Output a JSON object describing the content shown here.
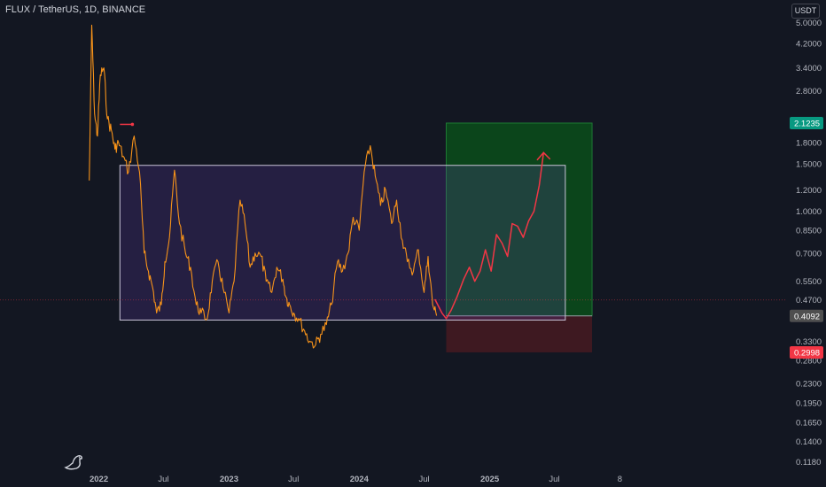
{
  "header": {
    "symbol_title": "FLUX / TetherUS, 1D, BINANCE",
    "currency_button": "USDT"
  },
  "chart_data": {
    "type": "line",
    "title": "FLUX / TetherUS, 1D, BINANCE",
    "ylabel": "",
    "xlabel": "",
    "y_scale": "log",
    "ylim": [
      0.108,
      5.3
    ],
    "y_ticks": [
      "5.0000",
      "4.2000",
      "3.4000",
      "2.8000",
      "1.8000",
      "1.5000",
      "1.2000",
      "1.0000",
      "0.8500",
      "0.7000",
      "0.5500",
      "0.4700",
      "0.3300",
      "0.2800",
      "0.2300",
      "0.1950",
      "0.1650",
      "0.1400",
      "0.1180"
    ],
    "x_ticks": [
      "2022",
      "Jul",
      "2023",
      "Jul",
      "2024",
      "Jul",
      "2025",
      "Jul",
      "8"
    ],
    "series": [
      {
        "color": "#f7931a",
        "x": [
          "2021-12-05",
          "2021-12-12",
          "2021-12-20",
          "2021-12-28",
          "2022-01-05",
          "2022-01-15",
          "2022-01-25",
          "2022-02-05",
          "2022-02-15",
          "2022-02-25",
          "2022-03-10",
          "2022-03-25",
          "2022-04-10",
          "2022-04-25",
          "2022-05-08",
          "2022-05-20",
          "2022-06-01",
          "2022-06-12",
          "2022-06-25",
          "2022-07-05",
          "2022-07-18",
          "2022-08-01",
          "2022-08-15",
          "2022-09-01",
          "2022-09-15",
          "2022-10-01",
          "2022-10-15",
          "2022-11-01",
          "2022-11-15",
          "2022-12-01",
          "2022-12-15",
          "2023-01-01",
          "2023-01-15",
          "2023-02-01",
          "2023-02-15",
          "2023-03-01",
          "2023-03-15",
          "2023-04-01",
          "2023-04-15",
          "2023-05-01",
          "2023-05-15",
          "2023-06-01",
          "2023-06-10",
          "2023-06-20",
          "2023-07-01",
          "2023-07-15",
          "2023-08-01",
          "2023-08-15",
          "2023-09-01",
          "2023-09-15",
          "2023-10-01",
          "2023-10-15",
          "2023-11-01",
          "2023-11-15",
          "2023-12-01",
          "2023-12-15",
          "2024-01-01",
          "2024-01-15",
          "2024-02-01",
          "2024-02-15",
          "2024-03-01",
          "2024-03-15",
          "2024-04-01",
          "2024-04-15",
          "2024-05-01",
          "2024-05-15",
          "2024-06-01",
          "2024-06-15",
          "2024-07-01",
          "2024-07-12",
          "2024-07-25",
          "2024-08-05"
        ],
        "y": [
          1.3,
          4.9,
          2.3,
          1.9,
          3.2,
          3.4,
          2.2,
          2.0,
          1.7,
          1.8,
          1.6,
          1.4,
          1.9,
          1.4,
          0.7,
          0.6,
          0.52,
          0.42,
          0.45,
          0.65,
          0.8,
          1.42,
          0.9,
          0.7,
          0.62,
          0.45,
          0.42,
          0.4,
          0.55,
          0.65,
          0.52,
          0.42,
          0.55,
          1.1,
          0.9,
          0.62,
          0.7,
          0.68,
          0.55,
          0.5,
          0.62,
          0.56,
          0.48,
          0.45,
          0.42,
          0.4,
          0.36,
          0.33,
          0.32,
          0.35,
          0.38,
          0.45,
          0.65,
          0.6,
          0.7,
          0.95,
          0.85,
          1.4,
          1.75,
          1.35,
          1.05,
          1.2,
          0.9,
          1.1,
          0.78,
          0.65,
          0.6,
          0.72,
          0.5,
          0.68,
          0.45,
          0.41
        ]
      }
    ],
    "projection": {
      "color": "#f23645",
      "x": [
        "2024-08-01",
        "2024-08-20",
        "2024-09-01",
        "2024-09-15",
        "2024-10-01",
        "2024-10-20",
        "2024-11-05",
        "2024-11-20",
        "2024-12-05",
        "2024-12-20",
        "2025-01-05",
        "2025-01-20",
        "2025-02-05",
        "2025-02-20",
        "2025-03-05",
        "2025-03-20",
        "2025-04-05",
        "2025-04-20",
        "2025-05-05",
        "2025-05-20",
        "2025-06-01"
      ],
      "y": [
        0.47,
        0.42,
        0.4,
        0.43,
        0.48,
        0.56,
        0.62,
        0.55,
        0.6,
        0.72,
        0.6,
        0.82,
        0.76,
        0.68,
        0.9,
        0.88,
        0.8,
        0.92,
        1.0,
        1.25,
        1.65
      ]
    },
    "range_box": {
      "x_start": "2022-03-01",
      "x_end": "2025-08-01",
      "y_low": 0.395,
      "y_high": 1.48
    },
    "marker": {
      "x_start": "2022-03-01",
      "x_end": "2022-04-05",
      "y": 2.1
    },
    "long_position": {
      "x_start": "2024-09-01",
      "x_end": "2025-10-15",
      "entry": 0.4092,
      "target": 2.1235,
      "stop": 0.2998
    },
    "current_price": {
      "value": 0.4092,
      "label": "0.4092",
      "color": "#4f4f4f"
    },
    "target_price": {
      "value": 2.1235,
      "label": "2.1235",
      "color": "#089981"
    },
    "stop_price": {
      "value": 0.2998,
      "label": "0.2998",
      "color": "#f23645"
    },
    "grid": false
  },
  "logo": {
    "icon": "tradingview-dinosaur-icon"
  }
}
